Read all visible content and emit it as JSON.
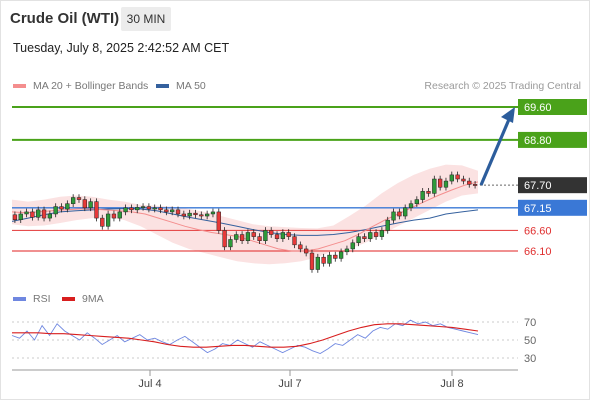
{
  "header": {
    "title": "Crude Oil (WTI)",
    "timeframe": "30 MIN",
    "timestamp": "Tuesday, July 8, 2025 2:42:52 AM CET"
  },
  "legend": {
    "ma20_label": "MA 20 + Bollinger Bands",
    "ma50_label": "MA 50",
    "credit": "Research © 2025 Trading Central",
    "rsi_label": "RSI",
    "ma9_label": "9MA"
  },
  "colors": {
    "bull_candle": "#2d9a3a",
    "bear_candle": "#e63939",
    "resistance": "#4aa21a",
    "support": "#e64d4d",
    "pivot": "#3a78d6",
    "current": "#333333",
    "ma20": "#f48e8e",
    "ma50": "#35619e",
    "bollinger_fill": "#fbe2e2",
    "arrow": "#2c5d9c",
    "rsi": "#6f87e0",
    "rsi_ma": "#d81e1e"
  },
  "chart_data": {
    "type": "candlestick",
    "title": "Crude Oil (WTI)",
    "timeframe": "30 MIN",
    "x_ticks": [
      "Jul 4",
      "Jul 7",
      "Jul 8"
    ],
    "ylim": [
      65.25,
      69.95
    ],
    "candles": [
      {
        "o": 66.98,
        "c": 66.86
      },
      {
        "o": 66.86,
        "c": 67.0
      },
      {
        "o": 67.0,
        "c": 67.05
      },
      {
        "o": 67.05,
        "c": 66.92
      },
      {
        "o": 66.92,
        "c": 67.1
      },
      {
        "o": 67.1,
        "c": 66.9
      },
      {
        "o": 66.9,
        "c": 67.0
      },
      {
        "o": 67.0,
        "c": 67.18
      },
      {
        "o": 67.18,
        "c": 67.12
      },
      {
        "o": 67.12,
        "c": 67.25
      },
      {
        "o": 67.25,
        "c": 67.4
      },
      {
        "o": 67.4,
        "c": 67.35
      },
      {
        "o": 67.35,
        "c": 67.15
      },
      {
        "o": 67.15,
        "c": 67.3
      },
      {
        "o": 67.3,
        "c": 66.9
      },
      {
        "o": 66.9,
        "c": 66.7
      },
      {
        "o": 66.7,
        "c": 67.0
      },
      {
        "o": 67.0,
        "c": 66.9
      },
      {
        "o": 66.9,
        "c": 67.05
      },
      {
        "o": 67.05,
        "c": 67.15
      },
      {
        "o": 67.15,
        "c": 67.1
      },
      {
        "o": 67.1,
        "c": 67.16
      },
      {
        "o": 67.16,
        "c": 67.18
      },
      {
        "o": 67.18,
        "c": 67.12
      },
      {
        "o": 67.12,
        "c": 67.15
      },
      {
        "o": 67.15,
        "c": 67.1
      },
      {
        "o": 67.1,
        "c": 67.05
      },
      {
        "o": 67.05,
        "c": 67.1
      },
      {
        "o": 67.1,
        "c": 67.0
      },
      {
        "o": 67.0,
        "c": 66.95
      },
      {
        "o": 66.95,
        "c": 67.02
      },
      {
        "o": 67.02,
        "c": 66.98
      },
      {
        "o": 66.98,
        "c": 66.95
      },
      {
        "o": 66.95,
        "c": 67.0
      },
      {
        "o": 67.0,
        "c": 67.05
      },
      {
        "o": 67.05,
        "c": 66.6
      },
      {
        "o": 66.6,
        "c": 66.2
      },
      {
        "o": 66.2,
        "c": 66.38
      },
      {
        "o": 66.38,
        "c": 66.5
      },
      {
        "o": 66.5,
        "c": 66.35
      },
      {
        "o": 66.35,
        "c": 66.55
      },
      {
        "o": 66.55,
        "c": 66.45
      },
      {
        "o": 66.45,
        "c": 66.35
      },
      {
        "o": 66.35,
        "c": 66.6
      },
      {
        "o": 66.6,
        "c": 66.5
      },
      {
        "o": 66.5,
        "c": 66.4
      },
      {
        "o": 66.4,
        "c": 66.55
      },
      {
        "o": 66.55,
        "c": 66.45
      },
      {
        "o": 66.45,
        "c": 66.25
      },
      {
        "o": 66.25,
        "c": 66.15
      },
      {
        "o": 66.15,
        "c": 66.05
      },
      {
        "o": 66.05,
        "c": 65.65
      },
      {
        "o": 65.65,
        "c": 65.95
      },
      {
        "o": 65.95,
        "c": 65.8
      },
      {
        "o": 65.8,
        "c": 66.0
      },
      {
        "o": 66.0,
        "c": 65.92
      },
      {
        "o": 65.92,
        "c": 66.08
      },
      {
        "o": 66.08,
        "c": 66.15
      },
      {
        "o": 66.15,
        "c": 66.3
      },
      {
        "o": 66.3,
        "c": 66.45
      },
      {
        "o": 66.45,
        "c": 66.4
      },
      {
        "o": 66.4,
        "c": 66.55
      },
      {
        "o": 66.55,
        "c": 66.45
      },
      {
        "o": 66.45,
        "c": 66.6
      },
      {
        "o": 66.6,
        "c": 66.85
      },
      {
        "o": 66.85,
        "c": 67.05
      },
      {
        "o": 67.05,
        "c": 66.95
      },
      {
        "o": 66.95,
        "c": 67.15
      },
      {
        "o": 67.15,
        "c": 67.25
      },
      {
        "o": 67.25,
        "c": 67.35
      },
      {
        "o": 67.35,
        "c": 67.55
      },
      {
        "o": 67.55,
        "c": 67.5
      },
      {
        "o": 67.5,
        "c": 67.85
      },
      {
        "o": 67.85,
        "c": 67.65
      },
      {
        "o": 67.65,
        "c": 67.8
      },
      {
        "o": 67.8,
        "c": 67.95
      },
      {
        "o": 67.95,
        "c": 67.85
      },
      {
        "o": 67.85,
        "c": 67.8
      },
      {
        "o": 67.8,
        "c": 67.72
      },
      {
        "o": 67.72,
        "c": 67.7
      }
    ],
    "ma20": [
      67.05,
      67.03,
      67.05,
      67.08,
      67.1,
      67.12,
      67.12,
      67.1,
      67.08,
      67.05,
      67.0,
      66.9,
      66.8,
      66.7,
      66.62,
      66.55,
      66.5,
      66.45,
      66.35,
      66.25,
      66.15,
      66.1,
      66.1,
      66.15,
      66.25,
      66.35,
      66.5,
      66.68,
      66.85,
      67.0,
      67.15,
      67.3,
      67.45,
      67.58,
      67.7,
      67.78
    ],
    "ma50": [
      66.82,
      66.9,
      66.98,
      67.05,
      67.08,
      67.1,
      67.12,
      67.13,
      67.12,
      67.08,
      67.0,
      66.92,
      66.85,
      66.78,
      66.7,
      66.62,
      66.55,
      66.5,
      66.48,
      66.48,
      66.5,
      66.55,
      66.62,
      66.7,
      66.78,
      66.85,
      66.9,
      67.0,
      67.05,
      67.1
    ],
    "bollinger_upper": [
      67.35,
      67.3,
      67.35,
      67.42,
      67.45,
      67.42,
      67.35,
      67.3,
      67.22,
      67.2,
      67.18,
      67.12,
      67.05,
      66.95,
      66.85,
      66.75,
      66.7,
      66.68,
      66.66,
      66.65,
      66.72,
      66.95,
      67.2,
      67.5,
      67.75,
      67.95,
      68.1,
      68.2,
      68.18,
      68.05
    ],
    "bollinger_lower": [
      66.75,
      66.7,
      66.72,
      66.78,
      66.85,
      66.9,
      66.92,
      66.85,
      66.7,
      66.5,
      66.3,
      66.15,
      66.05,
      65.95,
      65.85,
      65.8,
      65.78,
      65.8,
      65.85,
      65.95,
      66.1,
      66.15,
      66.3,
      66.5,
      66.7,
      66.9,
      67.1,
      67.3,
      67.45,
      67.5
    ],
    "levels": [
      {
        "value": 69.6,
        "label": "69.60",
        "kind": "resistance"
      },
      {
        "value": 68.8,
        "label": "68.80",
        "kind": "resistance"
      },
      {
        "value": 67.7,
        "label": "67.70",
        "kind": "current"
      },
      {
        "value": 67.15,
        "label": "67.15",
        "kind": "pivot"
      },
      {
        "value": 66.6,
        "label": "66.60",
        "kind": "support"
      },
      {
        "value": 66.1,
        "label": "66.10",
        "kind": "support"
      }
    ],
    "arrow": {
      "from": 67.7,
      "to": 69.6
    },
    "rsi_panel": {
      "ticks": [
        70,
        50,
        30
      ],
      "ylim": [
        20,
        80
      ],
      "rsi": [
        55,
        52,
        60,
        50,
        66,
        55,
        68,
        60,
        55,
        50,
        58,
        52,
        45,
        50,
        55,
        48,
        52,
        56,
        50,
        52,
        48,
        45,
        50,
        54,
        48,
        42,
        36,
        40,
        46,
        44,
        50,
        46,
        42,
        48,
        44,
        40,
        36,
        40,
        44,
        42,
        38,
        35,
        40,
        46,
        44,
        50,
        56,
        52,
        60,
        64,
        62,
        68,
        66,
        72,
        68,
        70,
        66,
        68,
        64,
        62,
        60,
        58,
        56
      ],
      "rsi_ma": [
        58,
        58,
        58,
        57,
        57,
        56,
        55,
        54,
        53,
        52,
        50,
        48,
        45,
        43,
        42,
        42,
        43,
        44,
        44,
        43,
        42,
        42,
        43,
        46,
        50,
        55,
        60,
        64,
        67,
        68,
        68,
        67,
        66,
        65,
        64,
        62,
        60
      ]
    }
  }
}
